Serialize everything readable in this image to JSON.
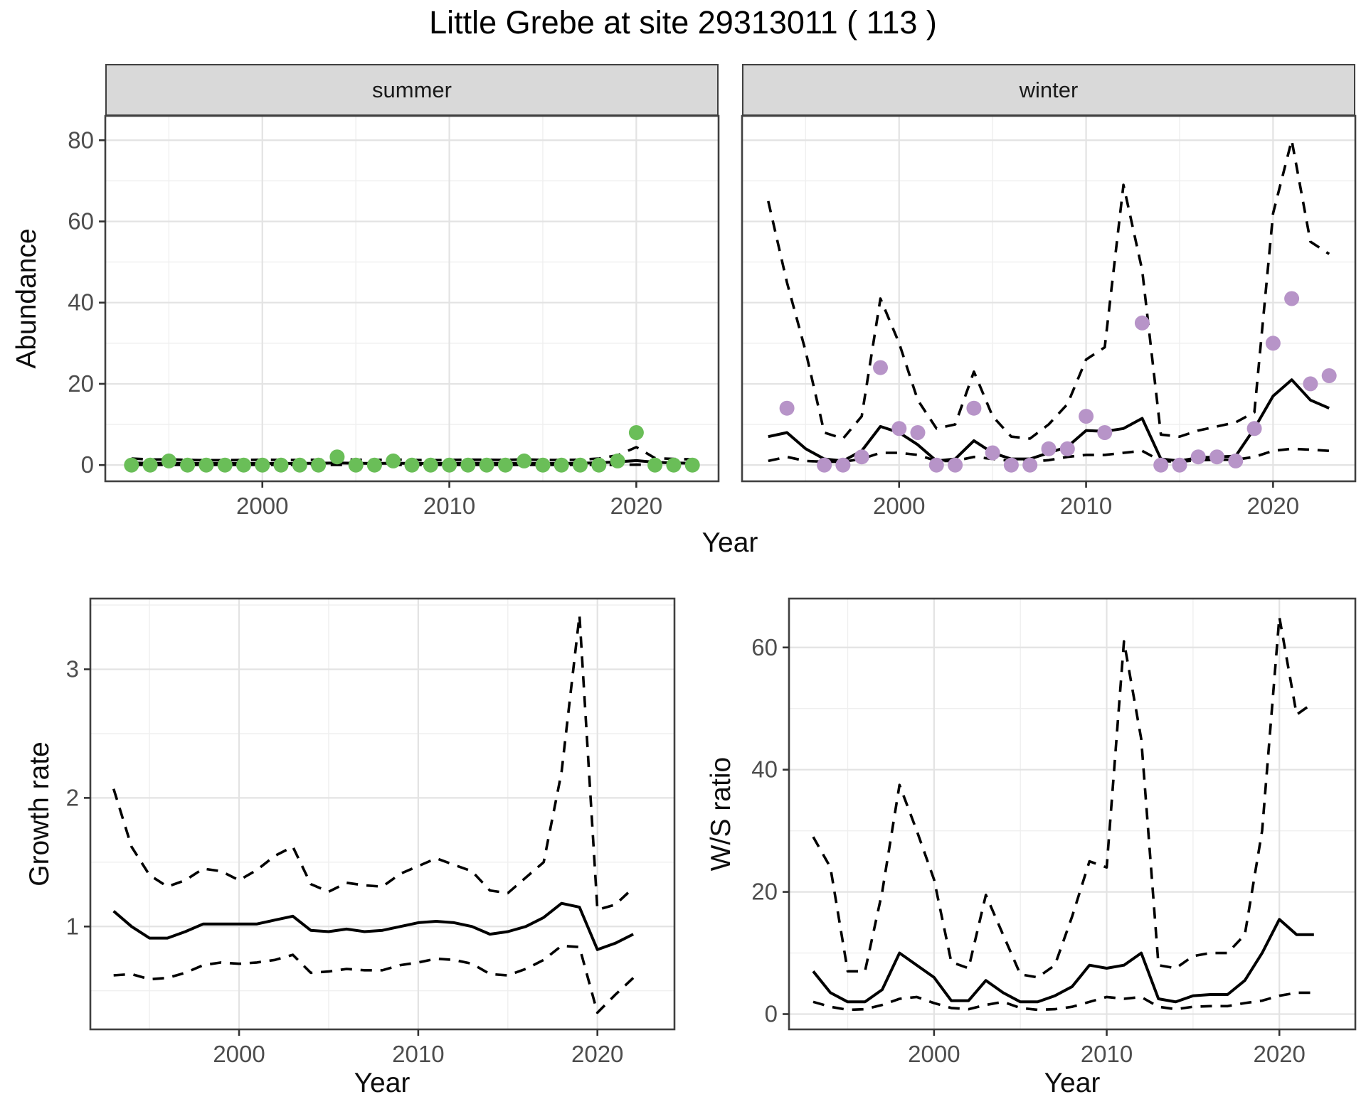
{
  "title": "Little Grebe at site 29313011 ( 113 )",
  "colors": {
    "summer_point": "#6ABE58",
    "winter_point": "#B794C8",
    "line": "#000000",
    "grid_major": "#e3e3e3",
    "grid_minor": "#efefef",
    "strip_bg": "#d9d9d9",
    "panel_border": "#404040",
    "tick_text": "#4d4d4d"
  },
  "axes": {
    "x_label": "Year",
    "y_top_label": "Abundance",
    "y_growth_label": "Growth rate",
    "y_ws_label": "W/S ratio"
  },
  "chart_data": [
    {
      "id": "summer",
      "type": "scatter",
      "facet_label": "summer",
      "xlabel": "Year",
      "ylabel": "Abundance",
      "legend_position": "none",
      "grid": true,
      "xlim": [
        1991.6,
        2024.4
      ],
      "ylim": [
        -4,
        86
      ],
      "x_ticks": [
        2000,
        2010,
        2020
      ],
      "x_minor": [
        1995,
        2005,
        2015
      ],
      "y_ticks": [
        0,
        20,
        40,
        60,
        80
      ],
      "y_minor": [
        10,
        30,
        50,
        70
      ],
      "point_color": "#6ABE58",
      "years": [
        1993,
        1994,
        1995,
        1996,
        1997,
        1998,
        1999,
        2000,
        2001,
        2002,
        2003,
        2004,
        2005,
        2006,
        2007,
        2008,
        2009,
        2010,
        2011,
        2012,
        2013,
        2014,
        2015,
        2016,
        2017,
        2018,
        2019,
        2020,
        2021,
        2022,
        2023
      ],
      "points": [
        0,
        0,
        1,
        0,
        0,
        0,
        0,
        0,
        0,
        0,
        0,
        2,
        0,
        0,
        1,
        0,
        0,
        0,
        0,
        0,
        0,
        1,
        0,
        0,
        0,
        0,
        1,
        8,
        0,
        0,
        0
      ],
      "fit": [
        0.5,
        0.45,
        0.45,
        0.4,
        0.4,
        0.4,
        0.4,
        0.4,
        0.4,
        0.4,
        0.45,
        0.5,
        0.45,
        0.4,
        0.45,
        0.4,
        0.4,
        0.4,
        0.45,
        0.45,
        0.4,
        0.45,
        0.4,
        0.4,
        0.45,
        0.55,
        0.8,
        1.1,
        0.7,
        0.5,
        0.45
      ],
      "ci_upper": [
        1.6,
        1.35,
        1.4,
        1.25,
        1.2,
        1.2,
        1.25,
        1.3,
        1.25,
        1.25,
        1.3,
        1.5,
        1.3,
        1.25,
        1.35,
        1.25,
        1.2,
        1.25,
        1.3,
        1.3,
        1.25,
        1.4,
        1.25,
        1.25,
        1.3,
        1.6,
        2.4,
        4.4,
        1.7,
        1.5,
        1.4
      ],
      "ci_lower": [
        0.05,
        0.05,
        0.05,
        0.05,
        0.05,
        0.05,
        0.05,
        0.05,
        0.05,
        0.05,
        0.05,
        0.05,
        0.05,
        0.05,
        0.05,
        0.05,
        0.05,
        0.05,
        0.05,
        0.05,
        0.05,
        0.05,
        0.05,
        0.05,
        0.05,
        0.05,
        0.05,
        0.1,
        0.05,
        0.05,
        0.05
      ]
    },
    {
      "id": "winter",
      "type": "scatter",
      "facet_label": "winter",
      "xlabel": "Year",
      "ylabel": "Abundance",
      "legend_position": "none",
      "grid": true,
      "xlim": [
        1991.6,
        2024.4
      ],
      "ylim": [
        -4,
        86
      ],
      "x_ticks": [
        2000,
        2010,
        2020
      ],
      "x_minor": [
        1995,
        2005,
        2015
      ],
      "y_ticks": [
        0,
        20,
        40,
        60,
        80
      ],
      "y_minor": [
        10,
        30,
        50,
        70
      ],
      "point_color": "#B794C8",
      "years": [
        1993,
        1994,
        1995,
        1996,
        1997,
        1998,
        1999,
        2000,
        2001,
        2002,
        2003,
        2004,
        2005,
        2006,
        2007,
        2008,
        2009,
        2010,
        2011,
        2012,
        2013,
        2014,
        2015,
        2016,
        2017,
        2018,
        2019,
        2020,
        2021,
        2022,
        2023
      ],
      "points": [
        null,
        14,
        null,
        0,
        0,
        2,
        24,
        9,
        8,
        0,
        0,
        14,
        3,
        0,
        0,
        4,
        4,
        12,
        8,
        null,
        35,
        0,
        0,
        2,
        2,
        1,
        9,
        30,
        41,
        20,
        22
      ],
      "fit": [
        7,
        8,
        4,
        1.5,
        1,
        3.5,
        9.5,
        8,
        5,
        1,
        1.5,
        6,
        3,
        1.5,
        1.5,
        3,
        4.5,
        8.5,
        8.3,
        9,
        11.5,
        1.5,
        1,
        1.8,
        2,
        2.2,
        9,
        17,
        21,
        16,
        14
      ],
      "ci_upper": [
        65,
        45,
        28,
        8,
        6.5,
        12,
        41,
        30,
        16,
        9,
        10,
        23,
        12,
        7,
        6.5,
        10,
        15,
        26,
        29,
        69,
        48,
        7.5,
        7,
        8.5,
        9.5,
        10.5,
        13,
        62,
        80,
        55,
        52
      ],
      "ci_lower": [
        1,
        2,
        1,
        0.8,
        0.8,
        1.5,
        3,
        3,
        2.5,
        1,
        1,
        2,
        1.5,
        1,
        0.8,
        1.2,
        2,
        2.5,
        2.5,
        3,
        3.5,
        1,
        0.8,
        1.2,
        1.3,
        1.3,
        2,
        3.5,
        4,
        3.8,
        3.5
      ]
    },
    {
      "id": "growth",
      "type": "line",
      "facet_label": "",
      "xlabel": "Year",
      "ylabel": "Growth rate",
      "legend_position": "none",
      "grid": true,
      "xlim": [
        1991.7,
        2024.3
      ],
      "ylim": [
        0.2,
        3.55
      ],
      "x_ticks": [
        2000,
        2010,
        2020
      ],
      "x_minor": [
        1995,
        2005,
        2015
      ],
      "y_ticks": [
        1,
        2,
        3
      ],
      "y_minor": [
        0.5,
        1.5,
        2.5,
        3.5
      ],
      "point_color": null,
      "years": [
        1993,
        1994,
        1995,
        1996,
        1997,
        1998,
        1999,
        2000,
        2001,
        2002,
        2003,
        2004,
        2005,
        2006,
        2007,
        2008,
        2009,
        2010,
        2011,
        2012,
        2013,
        2014,
        2015,
        2016,
        2017,
        2018,
        2019,
        2020,
        2021,
        2022
      ],
      "points": null,
      "fit": [
        1.12,
        1.0,
        0.91,
        0.91,
        0.96,
        1.02,
        1.02,
        1.02,
        1.02,
        1.05,
        1.08,
        0.97,
        0.96,
        0.98,
        0.96,
        0.97,
        1.0,
        1.03,
        1.04,
        1.03,
        1.0,
        0.94,
        0.96,
        1.0,
        1.07,
        1.18,
        1.15,
        0.82,
        0.87,
        0.94
      ],
      "ci_upper": [
        2.07,
        1.62,
        1.4,
        1.31,
        1.36,
        1.45,
        1.43,
        1.36,
        1.44,
        1.55,
        1.62,
        1.33,
        1.27,
        1.34,
        1.32,
        1.31,
        1.41,
        1.47,
        1.53,
        1.48,
        1.43,
        1.28,
        1.26,
        1.38,
        1.5,
        2.2,
        3.42,
        1.13,
        1.17,
        1.3
      ],
      "ci_lower": [
        0.62,
        0.63,
        0.59,
        0.6,
        0.64,
        0.7,
        0.72,
        0.71,
        0.72,
        0.74,
        0.78,
        0.64,
        0.65,
        0.67,
        0.66,
        0.66,
        0.7,
        0.72,
        0.75,
        0.74,
        0.71,
        0.63,
        0.62,
        0.67,
        0.74,
        0.85,
        0.84,
        0.33,
        0.47,
        0.6
      ]
    },
    {
      "id": "ws",
      "type": "line",
      "facet_label": "",
      "xlabel": "Year",
      "ylabel": "W/S ratio",
      "legend_position": "none",
      "grid": true,
      "xlim": [
        1991.6,
        2024.4
      ],
      "ylim": [
        -2.5,
        68
      ],
      "x_ticks": [
        2000,
        2010,
        2020
      ],
      "x_minor": [
        1995,
        2005,
        2015
      ],
      "y_ticks": [
        0,
        20,
        40,
        60
      ],
      "y_minor": [
        10,
        30,
        50
      ],
      "point_color": null,
      "years": [
        1993,
        1994,
        1995,
        1996,
        1997,
        1998,
        1999,
        2000,
        2001,
        2002,
        2003,
        2004,
        2005,
        2006,
        2007,
        2008,
        2009,
        2010,
        2011,
        2012,
        2013,
        2014,
        2015,
        2016,
        2017,
        2018,
        2019,
        2020,
        2021,
        2022
      ],
      "points": null,
      "fit": [
        7,
        3.5,
        2,
        2,
        4,
        10,
        8,
        6,
        2.2,
        2.2,
        5.5,
        3.5,
        2,
        2,
        3,
        4.5,
        8,
        7.5,
        8,
        10,
        2.5,
        2,
        3,
        3.2,
        3.2,
        5.5,
        10,
        15.5,
        13,
        13
      ],
      "ci_upper": [
        29,
        24,
        7,
        7,
        20,
        37.5,
        30,
        22,
        8.5,
        7.5,
        19.5,
        13,
        6.5,
        6,
        8,
        16,
        25,
        24,
        61,
        45,
        8,
        7.5,
        9.5,
        10,
        10,
        13,
        30,
        65,
        49,
        51
      ],
      "ci_lower": [
        2,
        1.2,
        0.7,
        0.8,
        1.5,
        2.5,
        2.8,
        1.8,
        1,
        0.8,
        1.5,
        2,
        1,
        0.7,
        0.8,
        1.2,
        2,
        2.8,
        2.5,
        2.8,
        1.2,
        0.8,
        1.2,
        1.3,
        1.3,
        1.8,
        2.2,
        3,
        3.5,
        3.5
      ]
    }
  ]
}
